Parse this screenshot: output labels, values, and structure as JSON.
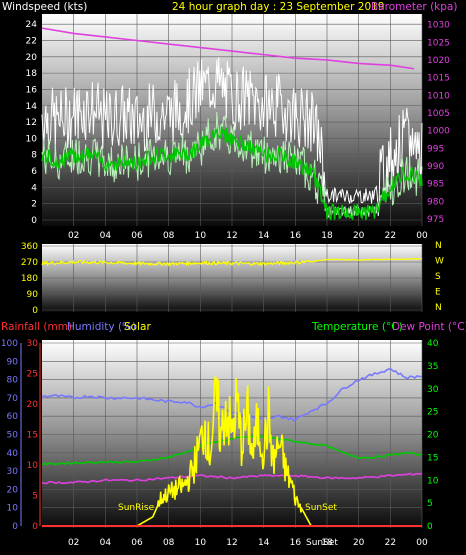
{
  "header": {
    "left": "Windspeed (kts)",
    "center": "24 hour graph day : 23 September 2019",
    "right": "Barometer (kpa)"
  },
  "bottom_header": {
    "rainfall": "Rainfall (mm)",
    "humidity": "Humidity (%)",
    "solar": "Solar",
    "temperature": "Temperature (°C)",
    "dewpoint": "Dew Point (°C)"
  },
  "colors": {
    "background": "#000000",
    "wind_max": "#ffffff",
    "wind_avg": "#b8f0b8",
    "wind_avg_line": "#00c800",
    "barometer": "#e040e0",
    "direction": "#ffff00",
    "humidity": "#7878ff",
    "temperature": "#00c800",
    "dewpoint": "#e040e0",
    "solar": "#ffff00",
    "rainfall": "#ff3030",
    "rain_axis": "#ff3030",
    "humidity_axis": "#7878ff",
    "temp_axis": "#00ff00"
  },
  "chart_data": [
    {
      "type": "line",
      "name": "wind-barometer",
      "x_ticks": [
        "02",
        "04",
        "06",
        "08",
        "10",
        "12",
        "14",
        "16",
        "18",
        "20",
        "22",
        "00"
      ],
      "y_left_ticks": [
        "0",
        "2",
        "4",
        "6",
        "8",
        "10",
        "12",
        "14",
        "16",
        "18",
        "20",
        "22",
        "24"
      ],
      "y_left_range": [
        0,
        25
      ],
      "y_right_ticks": [
        "975",
        "980",
        "985",
        "990",
        "995",
        "1000",
        "1005",
        "1010",
        "1015",
        "1020",
        "1025",
        "1030"
      ],
      "y_right_range": [
        973,
        1033
      ],
      "x_range": [
        0,
        24
      ],
      "grid": true,
      "series": [
        {
          "key": "barometer",
          "x": [
            0,
            2,
            4,
            6,
            8,
            10,
            12,
            14,
            16,
            18,
            20,
            22,
            23.5
          ],
          "values": [
            1029,
            1027.5,
            1026.5,
            1025.5,
            1024.5,
            1023.5,
            1022.5,
            1021.5,
            1020.5,
            1020,
            1019,
            1018.5,
            1017.5
          ]
        },
        {
          "key": "wind_max",
          "x": [
            0,
            1,
            2,
            3,
            4,
            5,
            6,
            7,
            8,
            9,
            10,
            11,
            12,
            13,
            14,
            15,
            16,
            17,
            17.5,
            18,
            19,
            20,
            21,
            22,
            23,
            24
          ],
          "values": [
            13,
            12,
            13,
            14,
            12,
            13,
            12,
            13,
            13,
            14,
            16,
            17,
            15,
            15,
            14,
            14,
            13,
            12,
            10,
            3,
            3,
            3,
            3,
            8,
            10,
            9
          ]
        },
        {
          "key": "wind_avg",
          "x": [
            0,
            1,
            2,
            3,
            4,
            5,
            6,
            7,
            8,
            9,
            10,
            11,
            12,
            13,
            14,
            15,
            16,
            17,
            17.5,
            18,
            19,
            20,
            21,
            22,
            23,
            24
          ],
          "values": [
            8,
            7,
            8,
            8,
            7,
            7,
            7,
            8,
            8,
            8,
            9,
            11,
            10,
            9,
            8,
            8,
            7,
            6,
            4,
            1,
            1,
            1,
            1,
            4,
            6,
            5
          ]
        }
      ]
    },
    {
      "type": "line",
      "name": "wind-direction",
      "x_range": [
        0,
        24
      ],
      "y_left_ticks": [
        "0",
        "90",
        "180",
        "270",
        "360"
      ],
      "y_range": [
        0,
        360
      ],
      "y_right_ticks": [
        "N",
        "W",
        "S",
        "E",
        "N"
      ],
      "series": [
        {
          "key": "direction",
          "x": [
            0,
            2,
            4,
            6,
            8,
            10,
            12,
            14,
            16,
            17,
            18,
            20,
            22,
            24
          ],
          "values": [
            262,
            270,
            268,
            262,
            260,
            265,
            263,
            260,
            268,
            272,
            284,
            282,
            285,
            288
          ]
        }
      ]
    },
    {
      "type": "line",
      "name": "rain-humidity-temperature",
      "x_ticks": [
        "02",
        "04",
        "06",
        "08",
        "10",
        "12",
        "14",
        "16",
        "18",
        "20",
        "22",
        "00"
      ],
      "x_range": [
        0,
        24
      ],
      "humidity_ticks": [
        "0",
        "10",
        "20",
        "30",
        "40",
        "50",
        "60",
        "70",
        "80",
        "90",
        "100"
      ],
      "rain_ticks": [
        "0",
        "5",
        "10",
        "15",
        "20",
        "25",
        "30"
      ],
      "temp_ticks": [
        "0",
        "5",
        "10",
        "15",
        "20",
        "25",
        "30",
        "35",
        "40"
      ],
      "annotations": [
        "SunRise",
        "SunSet",
        "SunSet"
      ],
      "series": [
        {
          "key": "humidity",
          "axis": "humidity",
          "x": [
            0,
            1,
            2,
            3,
            4,
            5,
            6,
            7,
            8,
            9,
            10,
            11,
            12,
            13,
            14,
            15,
            16,
            17,
            18,
            19,
            20,
            21,
            22,
            23,
            24
          ],
          "values": [
            71,
            71,
            70,
            71,
            70,
            70,
            70,
            69,
            68,
            68,
            65,
            67,
            62,
            60,
            58,
            60,
            58,
            63,
            67,
            75,
            80,
            83,
            86,
            81,
            82
          ]
        },
        {
          "key": "temperature",
          "axis": "temp",
          "x": [
            0,
            2,
            4,
            6,
            7,
            8,
            9,
            10,
            11,
            12,
            13,
            14,
            15,
            16,
            17,
            18,
            19,
            20,
            21,
            22,
            23,
            24
          ],
          "values": [
            13.5,
            13.8,
            14,
            14,
            14.5,
            15,
            16,
            17.5,
            18.5,
            19,
            19.5,
            19.5,
            19,
            18.5,
            18,
            17.5,
            16,
            15,
            15,
            15.5,
            16,
            15.5
          ]
        },
        {
          "key": "dewpoint",
          "axis": "temp",
          "x": [
            0,
            2,
            4,
            6,
            8,
            10,
            12,
            14,
            16,
            18,
            20,
            22,
            24
          ],
          "values": [
            9.5,
            9.5,
            10,
            10,
            10.5,
            11,
            10.5,
            11,
            11,
            10.5,
            10.5,
            11,
            11.5
          ]
        },
        {
          "key": "solar",
          "axis": "humidity",
          "x": [
            0,
            6,
            7,
            7.5,
            8,
            8.5,
            9,
            9.5,
            10,
            10.3,
            10.6,
            11,
            11.3,
            11.6,
            12,
            12.3,
            12.6,
            13,
            13.3,
            13.6,
            14,
            14.3,
            14.6,
            15,
            15.4,
            15.8,
            16,
            16.5,
            17,
            24
          ],
          "values": [
            0,
            0,
            5,
            15,
            18,
            20,
            22,
            30,
            45,
            55,
            40,
            70,
            48,
            65,
            50,
            68,
            45,
            60,
            38,
            55,
            42,
            60,
            35,
            45,
            30,
            22,
            15,
            8,
            0,
            0
          ]
        },
        {
          "key": "rainfall",
          "axis": "rain",
          "x": [
            0,
            24
          ],
          "values": [
            0,
            0
          ]
        }
      ]
    }
  ]
}
